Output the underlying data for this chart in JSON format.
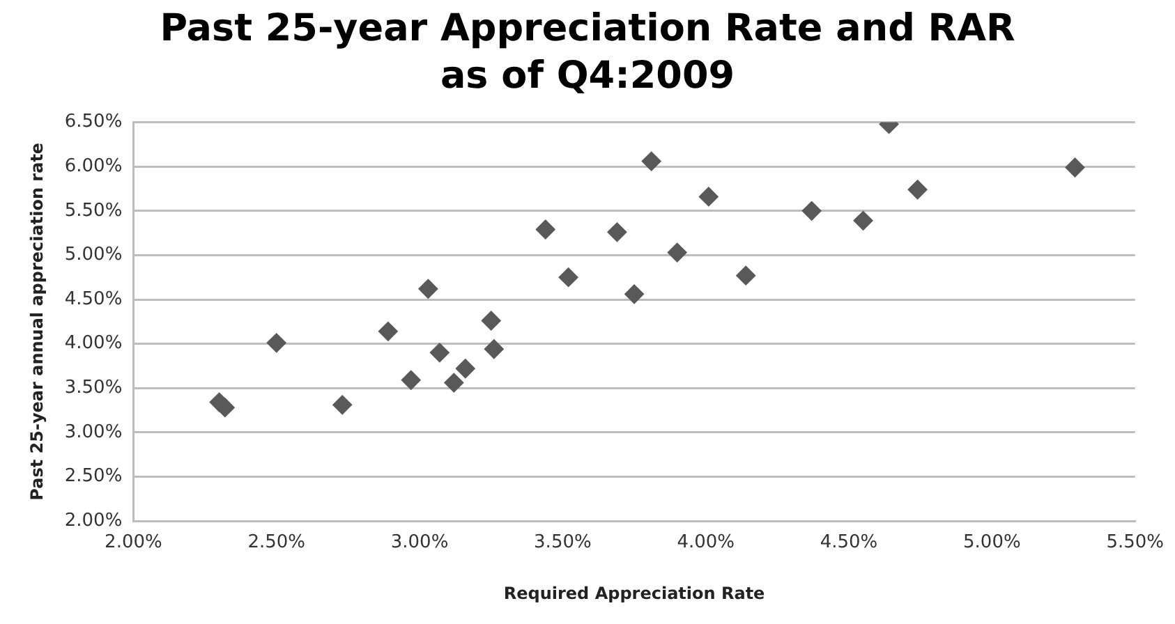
{
  "chart_data": {
    "type": "scatter",
    "title": "Past 25-year Appreciation Rate and RAR as of Q4:2009",
    "xlabel": "Required Appreciation Rate",
    "ylabel": "Past 25-year annual appreciation rate",
    "x": [
      2.3,
      2.32,
      2.5,
      2.73,
      2.89,
      2.97,
      3.03,
      3.07,
      3.12,
      3.16,
      3.25,
      3.26,
      3.44,
      3.52,
      3.69,
      3.75,
      3.81,
      3.9,
      4.01,
      4.14,
      4.37,
      4.55,
      4.64,
      4.74,
      5.29
    ],
    "values": [
      3.34,
      3.28,
      4.01,
      3.31,
      4.14,
      3.59,
      4.62,
      3.9,
      3.56,
      3.72,
      4.26,
      3.94,
      5.29,
      4.75,
      5.26,
      4.56,
      6.06,
      5.03,
      5.66,
      4.77,
      5.5,
      5.39,
      6.48,
      5.74,
      5.99
    ],
    "color": "#595959",
    "marker": "diamond",
    "grid": "y",
    "legend": false,
    "xlim": [
      2,
      5.5
    ],
    "xticks": [
      {
        "value": 2,
        "label": "2.00%"
      },
      {
        "value": 2.5,
        "label": "2.50%"
      },
      {
        "value": 3,
        "label": "3.00%"
      },
      {
        "value": 3.5,
        "label": "3.50%"
      },
      {
        "value": 4,
        "label": "4.00%"
      },
      {
        "value": 4.5,
        "label": "4.50%"
      },
      {
        "value": 5,
        "label": "5.00%"
      },
      {
        "value": 5.5,
        "label": "5.50%"
      }
    ],
    "ylim": [
      2,
      6.5
    ],
    "yticks": [
      {
        "value": 2,
        "label": "2.00%"
      },
      {
        "value": 2.5,
        "label": "2.50%"
      },
      {
        "value": 3,
        "label": "3.00%"
      },
      {
        "value": 3.5,
        "label": "3.50%"
      },
      {
        "value": 4,
        "label": "4.00%"
      },
      {
        "value": 4.5,
        "label": "4.50%"
      },
      {
        "value": 5,
        "label": "5.00%"
      },
      {
        "value": 5.5,
        "label": "5.50%"
      },
      {
        "value": 6,
        "label": "6.00%"
      },
      {
        "value": 6.5,
        "label": "6.50%"
      }
    ]
  }
}
